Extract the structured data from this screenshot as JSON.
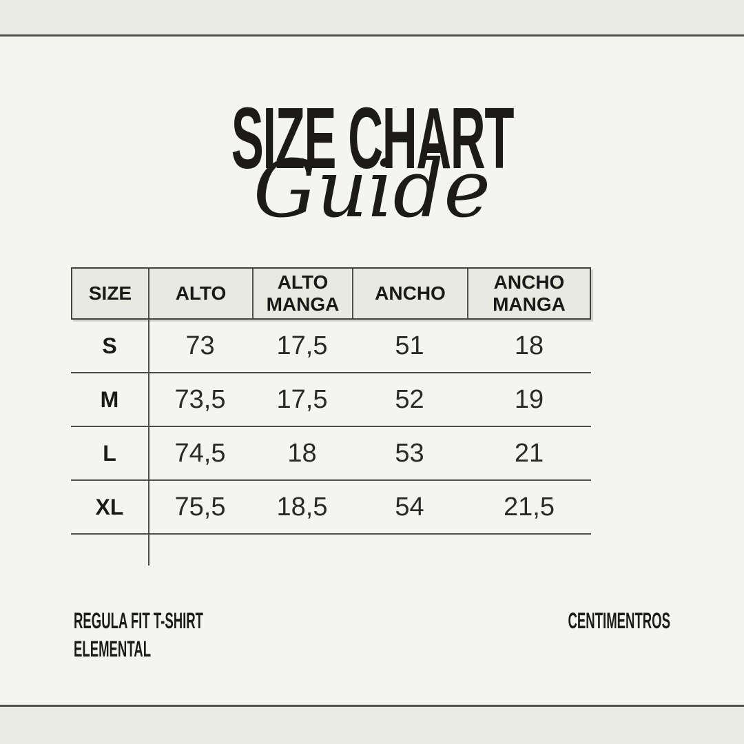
{
  "header": {
    "title": "SIZE CHART",
    "subtitle_script": "Guide"
  },
  "table": {
    "headers": [
      "SIZE",
      "ALTO",
      "ALTO MANGA",
      "ANCHO",
      "ANCHO MANGA"
    ],
    "rows": [
      {
        "size": "S",
        "values": [
          "73",
          "17,5",
          "51",
          "18"
        ]
      },
      {
        "size": "M",
        "values": [
          "73,5",
          "17,5",
          "52",
          "19"
        ]
      },
      {
        "size": "L",
        "values": [
          "74,5",
          "18",
          "53",
          "21"
        ]
      },
      {
        "size": "XL",
        "values": [
          "75,5",
          "18,5",
          "54",
          "21,5"
        ]
      }
    ]
  },
  "footer": {
    "product_line1": "REGULA FIT T-SHIRT",
    "product_line2": "ELEMENTAL",
    "units_label": "CENTIMENTROS"
  },
  "chart_data": {
    "type": "table",
    "title": "SIZE CHART Guide",
    "columns": [
      "SIZE",
      "ALTO",
      "ALTO MANGA",
      "ANCHO",
      "ANCHO MANGA"
    ],
    "unit": "CENTIMENTROS",
    "rows": [
      [
        "S",
        73,
        17.5,
        51,
        18
      ],
      [
        "M",
        73.5,
        17.5,
        52,
        19
      ],
      [
        "L",
        74.5,
        18,
        53,
        21
      ],
      [
        "XL",
        75.5,
        18.5,
        54,
        21.5
      ]
    ]
  },
  "colors": {
    "page_background": "#f4f5f1",
    "band_background": "#e9eae1",
    "header_fill": "#e8e9e0",
    "rule": "#4d4d47",
    "text": "#1d1b1a"
  }
}
